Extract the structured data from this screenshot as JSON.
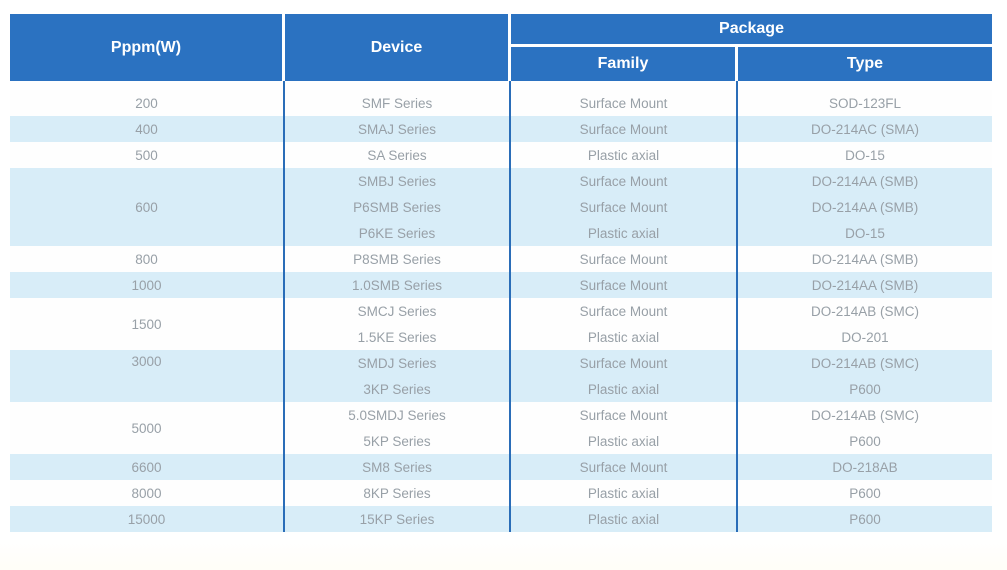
{
  "table": {
    "headers": {
      "pppm": "Pppm(W)",
      "device": "Device",
      "package": "Package",
      "family": "Family",
      "type": "Type"
    },
    "groups": [
      {
        "pppm": "200",
        "rows": [
          {
            "device": "SMF Series",
            "family": "Surface Mount",
            "type": "SOD-123FL"
          }
        ]
      },
      {
        "pppm": "400",
        "rows": [
          {
            "device": "SMAJ Series",
            "family": "Surface Mount",
            "type": "DO-214AC (SMA)"
          }
        ]
      },
      {
        "pppm": "500",
        "rows": [
          {
            "device": "SA Series",
            "family": "Plastic axial",
            "type": "DO-15"
          }
        ]
      },
      {
        "pppm": "600",
        "rows": [
          {
            "device": "SMBJ Series",
            "family": "Surface Mount",
            "type": "DO-214AA (SMB)"
          },
          {
            "device": "P6SMB Series",
            "family": "Surface Mount",
            "type": "DO-214AA (SMB)"
          },
          {
            "device": "P6KE Series",
            "family": "Plastic axial",
            "type": "DO-15"
          }
        ]
      },
      {
        "pppm": "800",
        "rows": [
          {
            "device": "P8SMB Series",
            "family": "Surface Mount",
            "type": "DO-214AA (SMB)"
          }
        ]
      },
      {
        "pppm": "1000",
        "rows": [
          {
            "device": "1.0SMB Series",
            "family": "Surface Mount",
            "type": "DO-214AA (SMB)"
          }
        ]
      },
      {
        "pppm": "1500",
        "rows": [
          {
            "device": "SMCJ Series",
            "family": "Surface Mount",
            "type": "DO-214AB (SMC)"
          },
          {
            "device": "1.5KE Series",
            "family": "Plastic axial",
            "type": "DO-201"
          }
        ]
      },
      {
        "pppm": "3000",
        "pppm_valign": "top",
        "rows": [
          {
            "device": "SMDJ Series",
            "family": "Surface Mount",
            "type": "DO-214AB (SMC)"
          },
          {
            "device": "3KP Series",
            "family": "Plastic axial",
            "type": "P600"
          }
        ]
      },
      {
        "pppm": "5000",
        "rows": [
          {
            "device": "5.0SMDJ Series",
            "family": "Surface Mount",
            "type": "DO-214AB (SMC)"
          },
          {
            "device": "5KP Series",
            "family": "Plastic axial",
            "type": "P600"
          }
        ]
      },
      {
        "pppm": "6600",
        "rows": [
          {
            "device": "SM8 Series",
            "family": "Surface Mount",
            "type": "DO-218AB"
          }
        ]
      },
      {
        "pppm": "8000",
        "rows": [
          {
            "device": "8KP Series",
            "family": "Plastic axial",
            "type": "P600"
          }
        ]
      },
      {
        "pppm": "15000",
        "rows": [
          {
            "device": "15KP Series",
            "family": "Plastic axial",
            "type": "P600"
          }
        ]
      }
    ]
  },
  "colors": {
    "header_bg": "#2b72c1",
    "divider_blue": "#2a6db8",
    "row_alt_bg": "#d8edf8",
    "row_bg": "#fefefe",
    "body_text": "#98a0a7",
    "header_text": "#ffffff"
  }
}
